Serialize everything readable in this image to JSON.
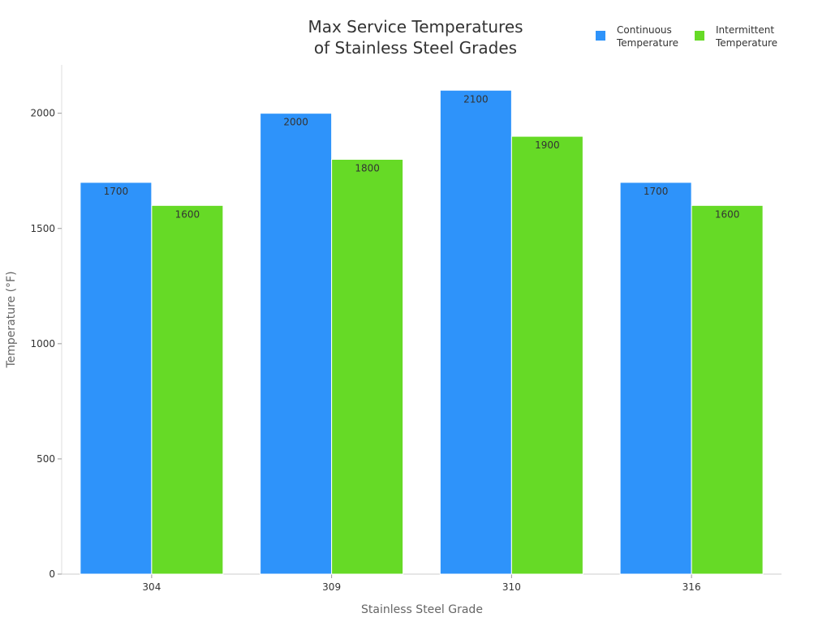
{
  "chart_data": {
    "type": "bar",
    "title": [
      "Max Service Temperatures",
      "of Stainless Steel Grades"
    ],
    "xlabel": "Stainless Steel Grade",
    "ylabel": "Temperature (°F)",
    "categories": [
      "304",
      "309",
      "310",
      "316"
    ],
    "series": [
      {
        "name": "Continuous Temperature",
        "name_lines": [
          "Continuous",
          "Temperature"
        ],
        "color": "#2E93FA",
        "values": [
          1700,
          2000,
          2100,
          1700
        ]
      },
      {
        "name": "Intermittent Temperature",
        "name_lines": [
          "Intermittent",
          "Temperature"
        ],
        "color": "#66DA26",
        "values": [
          1600,
          1800,
          1900,
          1600
        ]
      }
    ],
    "ylim": [
      0,
      2210
    ],
    "yticks": [
      0,
      500,
      1000,
      1500,
      2000
    ],
    "grid": false,
    "legend": "top-right",
    "data_labels": true
  }
}
